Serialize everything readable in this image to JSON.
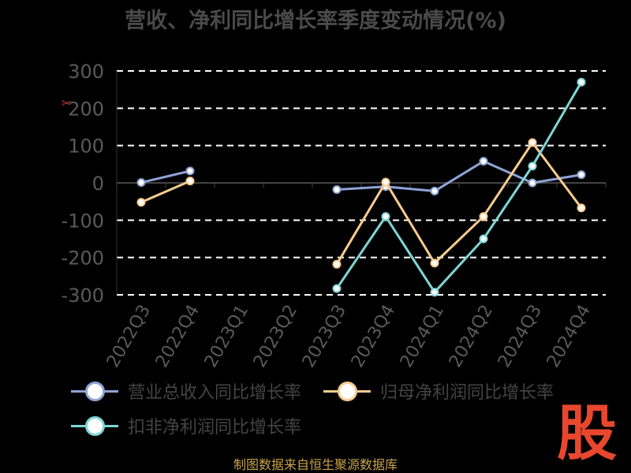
{
  "chart_data": {
    "type": "line",
    "title": "营收、净利同比增长率季度变动情况(%)",
    "categories": [
      "2022Q3",
      "2022Q4",
      "2023Q1",
      "2023Q2",
      "2023Q3",
      "2023Q4",
      "2024Q1",
      "2024Q2",
      "2024Q3",
      "2024Q4"
    ],
    "ylim": [
      -300,
      300
    ],
    "yticks": [
      300,
      200,
      100,
      0,
      -100,
      -200,
      -300
    ],
    "grid": true,
    "legend_position": "bottom",
    "series": [
      {
        "name": "营业总收入同比增长率",
        "color": "#8fa3d6",
        "values": [
          1,
          32,
          null,
          null,
          -18,
          -10,
          -22,
          58,
          0,
          22
        ]
      },
      {
        "name": "归母净利润同比增长率",
        "color": "#f7cc8e",
        "values": [
          -52,
          5,
          null,
          null,
          -218,
          2,
          -215,
          -90,
          108,
          -67
        ]
      },
      {
        "name": "扣非净利润同比增长率",
        "color": "#7ed6d6",
        "values": [
          null,
          null,
          null,
          null,
          -283,
          -90,
          -293,
          -150,
          45,
          270
        ]
      }
    ]
  },
  "source": "制图数据来自恒生聚源数据库",
  "logo": "股",
  "icon": "zoom-icon"
}
